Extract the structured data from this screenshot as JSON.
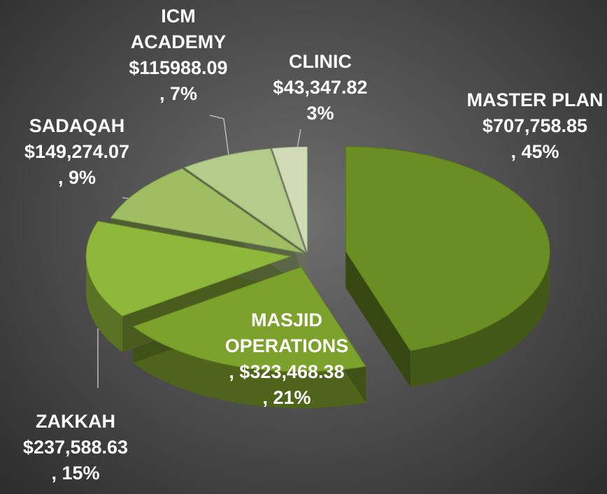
{
  "chart_data": {
    "type": "pie3d",
    "categories": [
      "MASTER PLAN",
      "MASJID OPERATIONS",
      "ZAKKAH",
      "SADAQAH",
      "ICM ACADEMY",
      "CLINIC"
    ],
    "values": [
      707758.85,
      323468.38,
      237588.63,
      149274.07,
      115988.09,
      43347.82
    ],
    "value_labels": [
      "$707,758.85",
      ", $323,468.38",
      "$237,588.63",
      "$149,274.07",
      "$115988.09",
      "$43,347.82"
    ],
    "percents": [
      45,
      21,
      15,
      9,
      7,
      3
    ],
    "percent_labels": [
      ", 45%",
      ", 21%",
      ", 15%",
      ", 9%",
      ", 7%",
      "3%"
    ],
    "colors": [
      "#6b8e23",
      "#7da22c",
      "#8fb83a",
      "#9fbe62",
      "#b3cc8a",
      "#cfdcb5"
    ]
  }
}
